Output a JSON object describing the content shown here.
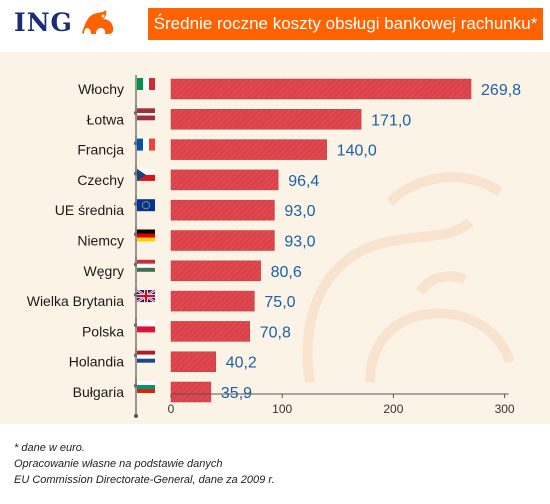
{
  "header": {
    "logo_text": "ING",
    "title": "Średnie roczne koszty obsługi bankowej  rachunku*"
  },
  "colors": {
    "brand_orange": "#ff6200",
    "brand_blue": "#1a2c7a",
    "bar": "#e04850",
    "value_label": "#1b5fa8",
    "panel_bg": "#fcf3e7"
  },
  "chart_data": {
    "type": "bar",
    "orientation": "horizontal",
    "title": "Średnie roczne koszty obsługi bankowej  rachunku*",
    "xlabel": "",
    "ylabel": "",
    "xlim": [
      0,
      300
    ],
    "xticks": [
      0,
      100,
      200,
      300
    ],
    "grid": false,
    "categories": [
      "Włochy",
      "Łotwa",
      "Francja",
      "Czechy",
      "UE średnia",
      "Niemcy",
      "Węgry",
      "Wielka Brytania",
      "Polska",
      "Holandia",
      "Bułgaria"
    ],
    "values": [
      269.8,
      171.0,
      140.0,
      96.4,
      93.0,
      93.0,
      80.6,
      75.0,
      70.8,
      40.2,
      35.9
    ],
    "value_labels": [
      "269,8",
      "171,0",
      "140,0",
      "96,4",
      "93,0",
      "93,0",
      "80,6",
      "75,0",
      "70,8",
      "40,2",
      "35,9"
    ],
    "flags": [
      "italy-flag-icon",
      "latvia-flag-icon",
      "france-flag-icon",
      "czech-flag-icon",
      "eu-flag-icon",
      "germany-flag-icon",
      "hungary-flag-icon",
      "uk-flag-icon",
      "poland-flag-icon",
      "netherlands-flag-icon",
      "bulgaria-flag-icon"
    ]
  },
  "footnote": {
    "line1": "* dane w euro.",
    "line2": "Opracowanie własne na podstawie danych",
    "line3": "EU Commission Directorate-General, dane za 2009 r."
  }
}
